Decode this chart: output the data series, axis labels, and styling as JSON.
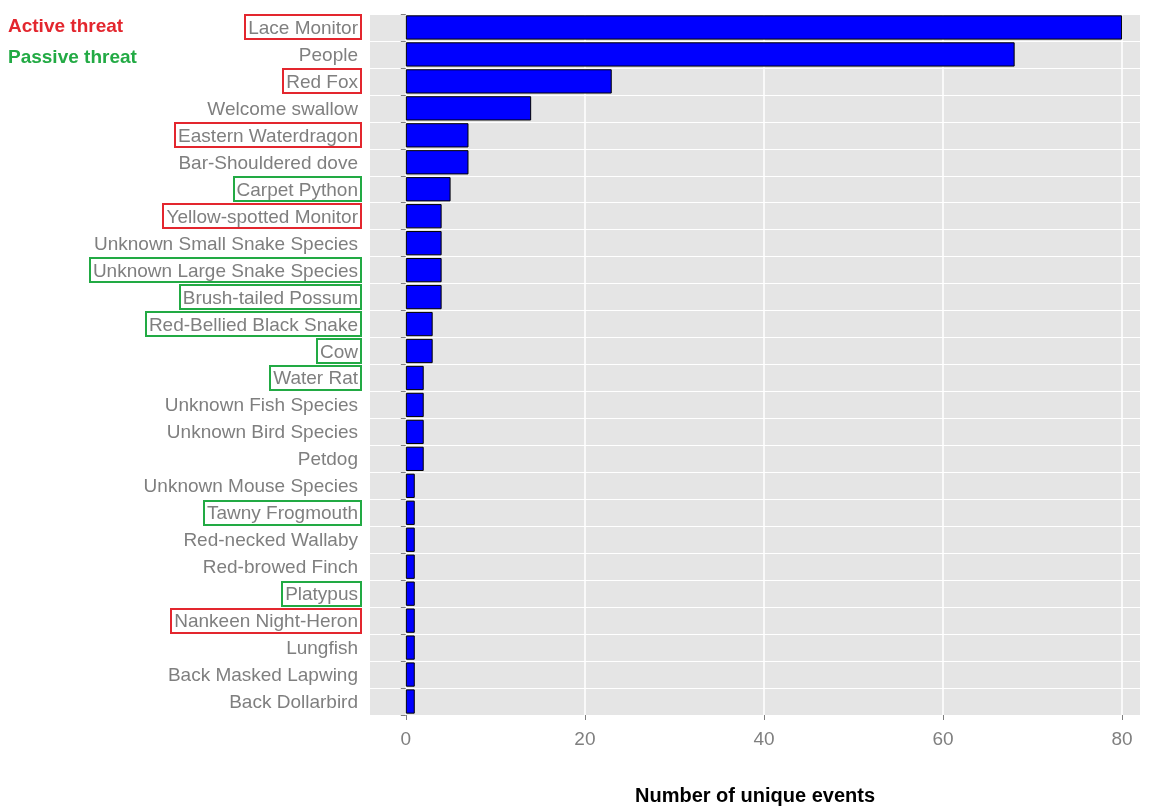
{
  "chart_data": {
    "type": "bar",
    "orientation": "horizontal",
    "xlabel": "Number of unique events",
    "categories": [
      "Lace Monitor",
      "People",
      "Red Fox",
      "Welcome swallow",
      "Eastern Waterdragon",
      "Bar-Shouldered dove",
      "Carpet Python",
      "Yellow-spotted Monitor",
      "Unknown Small Snake Species",
      "Unknown Large Snake Species",
      "Brush-tailed Possum",
      "Red-Bellied Black Snake",
      "Cow",
      "Water Rat",
      "Unknown Fish Species",
      "Unknown Bird Species",
      "Petdog",
      "Unknown Mouse Species",
      "Tawny Frogmouth",
      "Red-necked Wallaby",
      "Red-browed Finch",
      "Platypus",
      "Nankeen Night-Heron",
      "Lungfish",
      "Back Masked Lapwing",
      "Back Dollarbird"
    ],
    "values": [
      80,
      68,
      23,
      14,
      7,
      7,
      5,
      4,
      4,
      4,
      4,
      3,
      3,
      2,
      2,
      2,
      2,
      1,
      1,
      1,
      1,
      1,
      1,
      1,
      1,
      1
    ],
    "color": "#0000ff",
    "xlim": [
      -4,
      82
    ],
    "xticks": [
      0,
      20,
      40,
      60,
      80
    ],
    "grid": true,
    "annotations": [
      "Active threat",
      "Passive threat"
    ]
  }
}
